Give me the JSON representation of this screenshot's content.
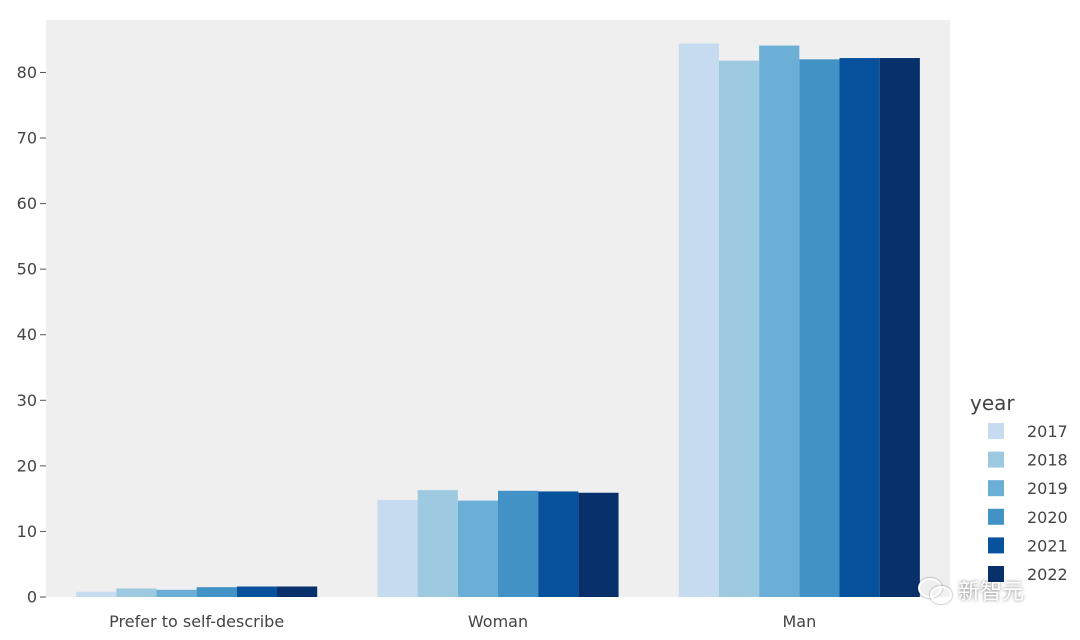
{
  "chart_data": {
    "type": "bar",
    "title": "",
    "xlabel": "",
    "ylabel": "",
    "categories": [
      "Prefer to self-describe",
      "Woman",
      "Man"
    ],
    "ylim": [
      0,
      88
    ],
    "yticks": [
      0,
      10,
      20,
      30,
      40,
      50,
      60,
      70,
      80
    ],
    "grid": false,
    "legend": {
      "title": "year",
      "placement": "bottom-right"
    },
    "series": [
      {
        "name": "2017",
        "color": "#c6dbef",
        "values": [
          0.8,
          14.8,
          84.4
        ]
      },
      {
        "name": "2018",
        "color": "#9ecae1",
        "values": [
          1.3,
          16.3,
          81.8
        ]
      },
      {
        "name": "2019",
        "color": "#6baed6",
        "values": [
          1.1,
          14.7,
          84.1
        ]
      },
      {
        "name": "2020",
        "color": "#4292c6",
        "values": [
          1.5,
          16.2,
          82.0
        ]
      },
      {
        "name": "2021",
        "color": "#08519c",
        "values": [
          1.6,
          16.1,
          82.2
        ]
      },
      {
        "name": "2022",
        "color": "#08306b",
        "values": [
          1.6,
          15.9,
          82.2
        ]
      }
    ],
    "plot_background": "#efeff0"
  },
  "watermark": {
    "text": "新智元"
  }
}
